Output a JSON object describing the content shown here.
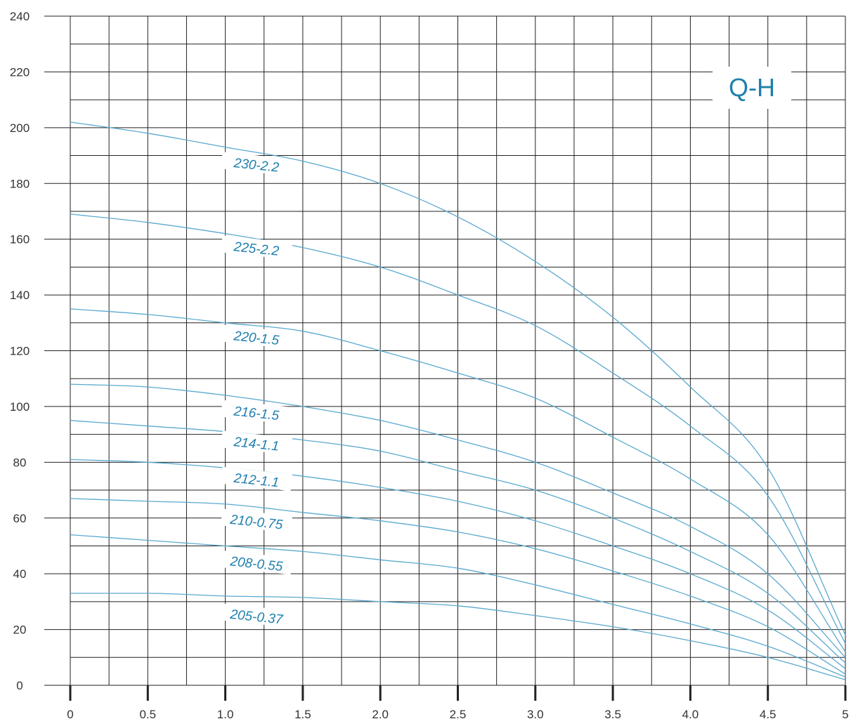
{
  "colors": {
    "curve": "#5aa9cf",
    "label": "#1f7fae",
    "grid": "#222222",
    "background": "#ffffff"
  },
  "chart_data": {
    "type": "line",
    "title": "Q-H",
    "xlabel": "",
    "ylabel": "",
    "xlim": [
      0,
      5
    ],
    "ylim": [
      0,
      240
    ],
    "grid": true,
    "x_ticks": [
      "0",
      "0.5",
      "1.0",
      "1.5",
      "2.0",
      "2.5",
      "3.0",
      "3.5",
      "4.0",
      "4.5",
      "5"
    ],
    "y_ticks": [
      "0",
      "20",
      "40",
      "60",
      "80",
      "100",
      "120",
      "140",
      "160",
      "180",
      "200",
      "220",
      "240"
    ],
    "x": [
      0,
      0.5,
      1.0,
      1.5,
      2.0,
      2.5,
      3.0,
      3.5,
      4.0,
      4.5,
      5.0
    ],
    "series": [
      {
        "name": "230-2.2",
        "values": [
          202,
          198,
          193,
          188,
          180,
          168,
          152,
          132,
          107,
          78,
          18
        ],
        "label_at": [
          1.2,
          186
        ]
      },
      {
        "name": "225-2.2",
        "values": [
          169,
          166,
          162,
          157,
          150,
          140,
          129,
          112,
          93,
          68,
          15
        ],
        "label_at": [
          1.2,
          156
        ]
      },
      {
        "name": "220-1.5",
        "values": [
          135,
          133,
          130,
          127,
          120,
          112,
          103,
          89,
          74,
          54,
          12
        ],
        "label_at": [
          1.2,
          124
        ]
      },
      {
        "name": "216-1.5",
        "values": [
          108,
          107,
          104,
          100,
          95,
          88,
          80,
          69,
          57,
          40,
          10
        ],
        "label_at": [
          1.2,
          97
        ]
      },
      {
        "name": "214-1.1",
        "values": [
          95,
          93,
          91,
          88,
          84,
          77,
          70,
          60,
          48,
          33,
          8
        ],
        "label_at": [
          1.2,
          86
        ]
      },
      {
        "name": "212-1.1",
        "values": [
          81,
          80,
          78,
          75,
          71,
          66,
          59,
          50,
          40,
          27,
          6
        ],
        "label_at": [
          1.2,
          73
        ]
      },
      {
        "name": "210-0.75",
        "values": [
          67,
          66,
          65,
          62,
          59,
          55,
          49,
          41,
          32,
          21,
          4
        ],
        "label_at": [
          1.2,
          58
        ]
      },
      {
        "name": "208-0.55",
        "values": [
          54,
          52,
          50,
          48,
          45,
          42,
          36,
          29,
          22,
          14,
          3
        ],
        "label_at": [
          1.2,
          43
        ]
      },
      {
        "name": "205-0.37",
        "values": [
          33,
          33,
          32,
          31.5,
          30,
          28.5,
          25,
          21,
          16,
          10,
          2
        ],
        "label_at": [
          1.2,
          24
        ]
      }
    ]
  }
}
